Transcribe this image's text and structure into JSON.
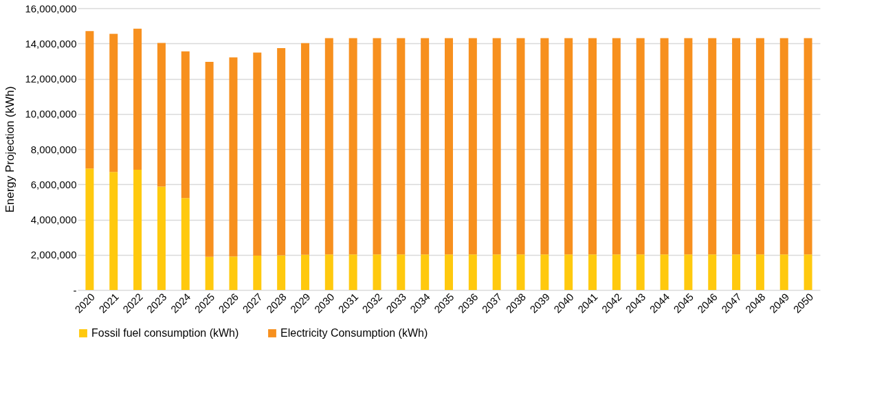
{
  "chart_data": {
    "type": "bar",
    "stacked": true,
    "ylabel": "Energy Projection (kWh)",
    "categories": [
      "2020",
      "2021",
      "2022",
      "2023",
      "2024",
      "2025",
      "2026",
      "2027",
      "2028",
      "2029",
      "2030",
      "2031",
      "2032",
      "2033",
      "2034",
      "2035",
      "2036",
      "2037",
      "2038",
      "2039",
      "2040",
      "2041",
      "2042",
      "2043",
      "2044",
      "2045",
      "2046",
      "2047",
      "2048",
      "2049",
      "2050"
    ],
    "series": [
      {
        "name": "Fossil fuel consumption (kWh)",
        "color": "#ffc90e",
        "values": [
          6900000,
          6700000,
          6830000,
          5870000,
          5220000,
          1880000,
          1900000,
          1950000,
          1970000,
          2000000,
          2020000,
          2020000,
          2020000,
          2020000,
          2020000,
          2020000,
          2020000,
          2020000,
          2020000,
          2020000,
          2020000,
          2020000,
          2020000,
          2020000,
          2020000,
          2020000,
          2020000,
          2020000,
          2020000,
          2020000,
          2020000
        ]
      },
      {
        "name": "Electricity Consumption (kWh)",
        "color": "#f7901e",
        "values": [
          7800000,
          7850000,
          8010000,
          8160000,
          8330000,
          11080000,
          11310000,
          11530000,
          11770000,
          12020000,
          12280000,
          12280000,
          12280000,
          12280000,
          12280000,
          12280000,
          12280000,
          12280000,
          12280000,
          12280000,
          12280000,
          12280000,
          12280000,
          12280000,
          12280000,
          12280000,
          12280000,
          12280000,
          12280000,
          12280000,
          12280000
        ]
      }
    ],
    "ylim": [
      0,
      16000000
    ],
    "yticks": [
      {
        "value": 0,
        "label": "-"
      },
      {
        "value": 2000000,
        "label": "2,000,000"
      },
      {
        "value": 4000000,
        "label": "4,000,000"
      },
      {
        "value": 6000000,
        "label": "6,000,000"
      },
      {
        "value": 8000000,
        "label": "8,000,000"
      },
      {
        "value": 10000000,
        "label": "10,000,000"
      },
      {
        "value": 12000000,
        "label": "12,000,000"
      },
      {
        "value": 14000000,
        "label": "14,000,000"
      },
      {
        "value": 16000000,
        "label": "16,000,000"
      }
    ],
    "grid": "y",
    "legend": "bottom"
  }
}
